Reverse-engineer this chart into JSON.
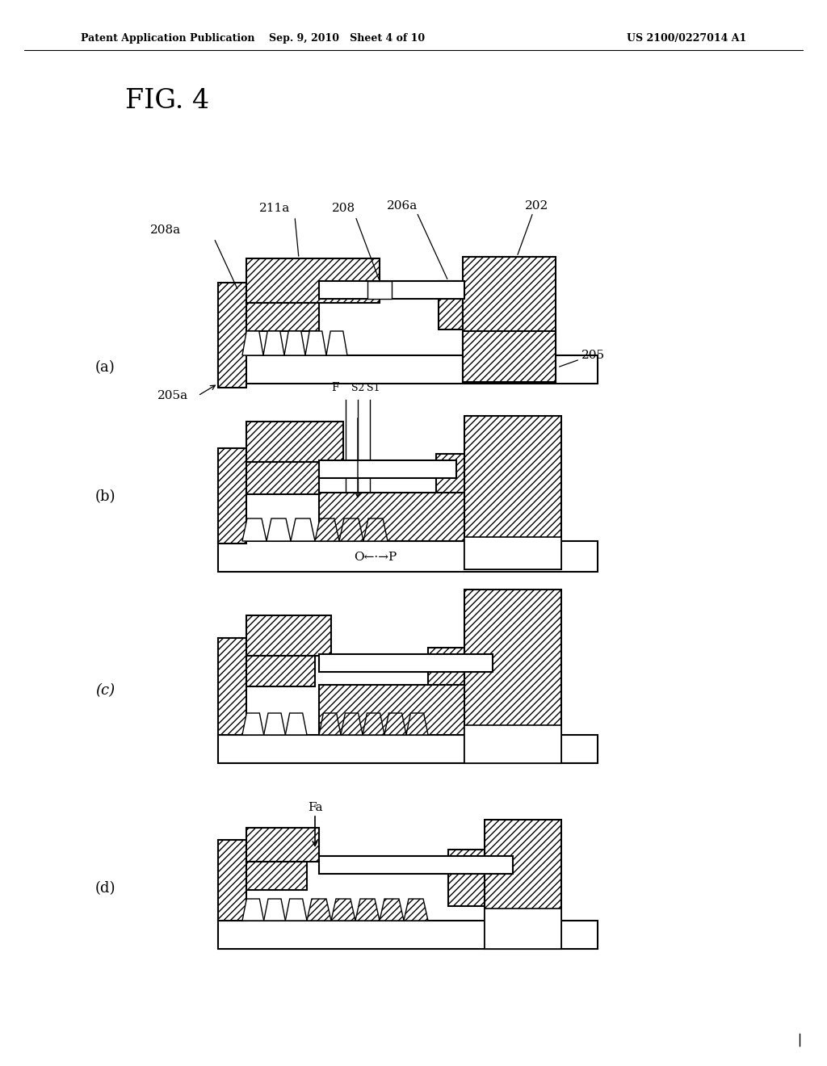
{
  "header_left": "Patent Application Publication",
  "header_mid": "Sep. 9, 2010   Sheet 4 of 10",
  "header_right": "US 2100/0227014 A1",
  "fig_label": "FIG. 4",
  "bg_color": "#ffffff"
}
